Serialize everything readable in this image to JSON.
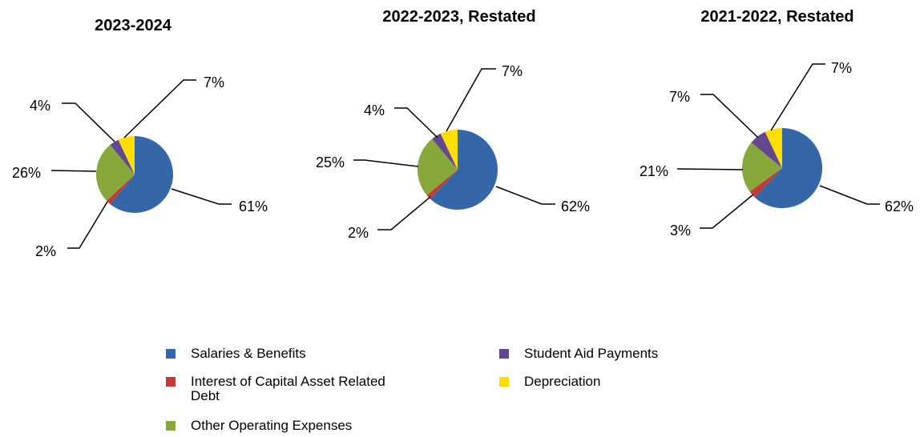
{
  "chart_data": [
    {
      "type": "pie",
      "title": "2023-2024",
      "slices": [
        {
          "category": "Salaries & Benefits",
          "value": 61,
          "label": "61%"
        },
        {
          "category": "Interest of Capital Asset Related Debt",
          "value": 2,
          "label": "2%"
        },
        {
          "category": "Other Operating Expenses",
          "value": 26,
          "label": "26%"
        },
        {
          "category": "Student Aid Payments",
          "value": 4,
          "label": "4%"
        },
        {
          "category": "Depreciation",
          "value": 7,
          "label": "7%"
        }
      ]
    },
    {
      "type": "pie",
      "title": "2022-2023, Restated",
      "slices": [
        {
          "category": "Salaries & Benefits",
          "value": 62,
          "label": "62%"
        },
        {
          "category": "Interest of Capital Asset Related Debt",
          "value": 2,
          "label": "2%"
        },
        {
          "category": "Other Operating Expenses",
          "value": 25,
          "label": "25%"
        },
        {
          "category": "Student Aid Payments",
          "value": 4,
          "label": "4%"
        },
        {
          "category": "Depreciation",
          "value": 7,
          "label": "7%"
        }
      ]
    },
    {
      "type": "pie",
      "title": "2021-2022, Restated",
      "slices": [
        {
          "category": "Salaries & Benefits",
          "value": 62,
          "label": "62%"
        },
        {
          "category": "Interest of Capital Asset Related Debt",
          "value": 3,
          "label": "3%"
        },
        {
          "category": "Other Operating Expenses",
          "value": 21,
          "label": "21%"
        },
        {
          "category": "Student Aid Payments",
          "value": 7,
          "label": "7%"
        },
        {
          "category": "Depreciation",
          "value": 7,
          "label": "7%"
        }
      ]
    }
  ],
  "legend": {
    "items": [
      {
        "label": "Salaries & Benefits",
        "color": "#3466A8"
      },
      {
        "label": "Student Aid Payments",
        "color": "#63478F"
      },
      {
        "label": "Interest of Capital Asset Related Debt",
        "color": "#C43A35"
      },
      {
        "label": "Depreciation",
        "color": "#FFDD00"
      },
      {
        "label": "Other Operating Expenses",
        "color": "#88A83C"
      }
    ]
  },
  "colors": {
    "Salaries & Benefits": "#3466A8",
    "Interest of Capital Asset Related Debt": "#C43A35",
    "Other Operating Expenses": "#88A83C",
    "Student Aid Payments": "#63478F",
    "Depreciation": "#FFDD00"
  }
}
